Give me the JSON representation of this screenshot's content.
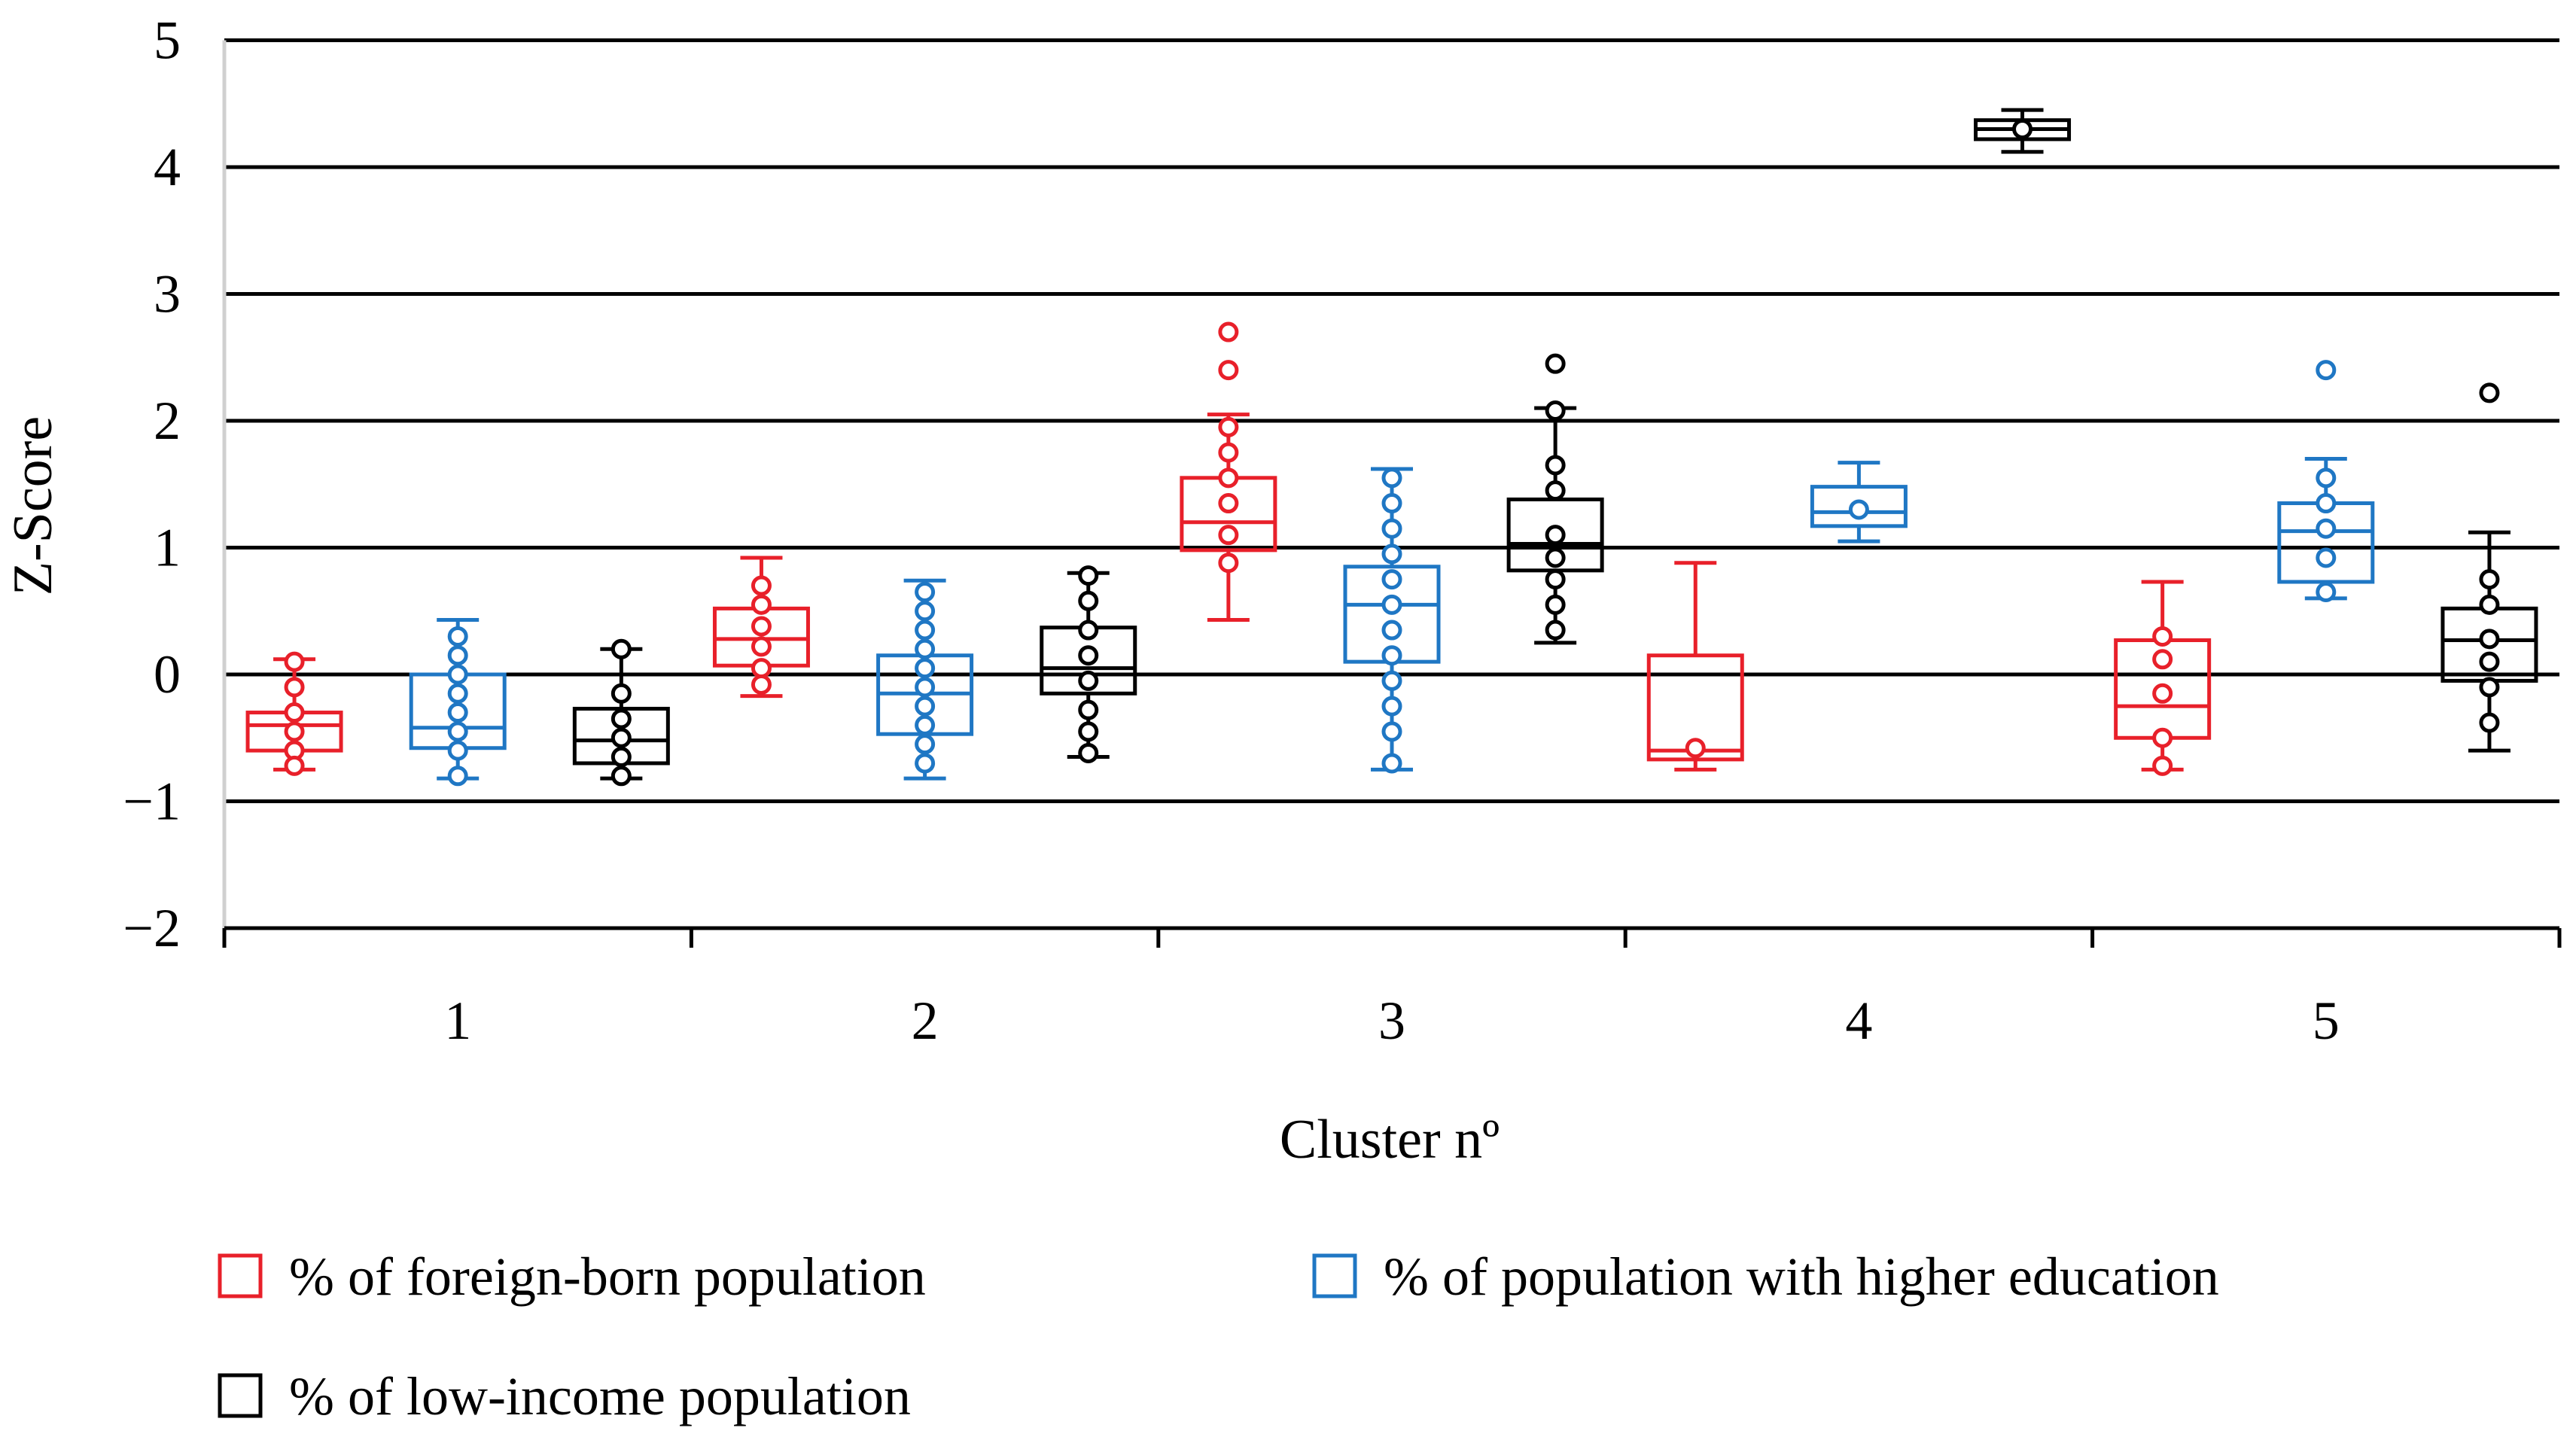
{
  "chart_data": {
    "type": "box",
    "xlabel": "Cluster nº",
    "ylabel": "Z-Score",
    "categories": [
      "1",
      "2",
      "3",
      "4",
      "5"
    ],
    "ylim": [
      -2,
      5
    ],
    "yticks": [
      5,
      4,
      3,
      2,
      1,
      0,
      -1,
      -2
    ],
    "ytick_labels": [
      "5",
      "4",
      "3",
      "2",
      "1",
      "0",
      "−1",
      "−2"
    ],
    "grid": true,
    "legend_position": "bottom",
    "series": [
      {
        "name": "% of foreign-born population",
        "color": "#e8202a",
        "boxes": [
          {
            "cluster": "1",
            "whisker_low": -0.75,
            "q1": -0.6,
            "median": -0.4,
            "q3": -0.3,
            "whisker_high": 0.12,
            "mean": -0.4,
            "points": [
              0.1,
              -0.1,
              -0.3,
              -0.45,
              -0.6,
              -0.72
            ]
          },
          {
            "cluster": "2",
            "whisker_low": -0.17,
            "q1": 0.07,
            "median": 0.28,
            "q3": 0.52,
            "whisker_high": 0.92,
            "mean": 0.3,
            "points": [
              0.7,
              0.55,
              0.38,
              0.22,
              0.05,
              -0.08
            ]
          },
          {
            "cluster": "3",
            "whisker_low": 0.43,
            "q1": 0.98,
            "median": 1.2,
            "q3": 1.55,
            "whisker_high": 2.05,
            "mean": 1.3,
            "points": [
              2.7,
              2.4,
              1.95,
              1.75,
              1.55,
              1.35,
              1.1,
              0.88
            ]
          },
          {
            "cluster": "4",
            "whisker_low": -0.75,
            "q1": -0.67,
            "median": -0.6,
            "q3": 0.15,
            "whisker_high": 0.88,
            "mean": -0.58,
            "points": [
              -0.58
            ]
          },
          {
            "cluster": "5",
            "whisker_low": -0.75,
            "q1": -0.5,
            "median": -0.25,
            "q3": 0.27,
            "whisker_high": 0.73,
            "mean": -0.1,
            "points": [
              0.3,
              0.12,
              -0.15,
              -0.5,
              -0.72
            ]
          }
        ]
      },
      {
        "name": "% of population with higher education",
        "color": "#1f77c4",
        "boxes": [
          {
            "cluster": "1",
            "whisker_low": -0.82,
            "q1": -0.58,
            "median": -0.42,
            "q3": 0.0,
            "whisker_high": 0.43,
            "mean": -0.3,
            "points": [
              0.3,
              0.15,
              0.0,
              -0.15,
              -0.3,
              -0.45,
              -0.6,
              -0.8
            ]
          },
          {
            "cluster": "2",
            "whisker_low": -0.82,
            "q1": -0.47,
            "median": -0.15,
            "q3": 0.15,
            "whisker_high": 0.74,
            "mean": -0.1,
            "points": [
              0.65,
              0.5,
              0.35,
              0.2,
              0.05,
              -0.1,
              -0.25,
              -0.4,
              -0.55,
              -0.7
            ]
          },
          {
            "cluster": "3",
            "whisker_low": -0.75,
            "q1": 0.1,
            "median": 0.55,
            "q3": 0.85,
            "whisker_high": 1.62,
            "mean": 0.5,
            "points": [
              1.55,
              1.35,
              1.15,
              0.95,
              0.75,
              0.55,
              0.35,
              0.15,
              -0.05,
              -0.25,
              -0.45,
              -0.7
            ]
          },
          {
            "cluster": "4",
            "whisker_low": 1.05,
            "q1": 1.17,
            "median": 1.28,
            "q3": 1.48,
            "whisker_high": 1.67,
            "mean": 1.3,
            "points": [
              1.3
            ]
          },
          {
            "cluster": "5",
            "whisker_low": 0.6,
            "q1": 0.73,
            "median": 1.13,
            "q3": 1.35,
            "whisker_high": 1.7,
            "mean": 1.05,
            "points": [
              2.4,
              1.55,
              1.35,
              1.15,
              0.92,
              0.65
            ]
          }
        ]
      },
      {
        "name": "% of low-income population",
        "color": "#000000",
        "boxes": [
          {
            "cluster": "1",
            "whisker_low": -0.82,
            "q1": -0.7,
            "median": -0.52,
            "q3": -0.27,
            "whisker_high": 0.2,
            "mean": -0.5,
            "points": [
              0.2,
              -0.15,
              -0.35,
              -0.5,
              -0.65,
              -0.8
            ]
          },
          {
            "cluster": "2",
            "whisker_low": -0.65,
            "q1": -0.15,
            "median": 0.05,
            "q3": 0.37,
            "whisker_high": 0.8,
            "mean": 0.05,
            "points": [
              0.78,
              0.58,
              0.35,
              0.15,
              -0.05,
              -0.28,
              -0.45,
              -0.62
            ]
          },
          {
            "cluster": "3",
            "whisker_low": 0.25,
            "q1": 0.82,
            "median": 1.03,
            "q3": 1.38,
            "whisker_high": 2.1,
            "mean": 1.05,
            "points": [
              2.45,
              2.08,
              1.65,
              1.45,
              1.1,
              0.92,
              0.75,
              0.55,
              0.35
            ]
          },
          {
            "cluster": "4",
            "whisker_low": 4.12,
            "q1": 4.22,
            "median": 4.3,
            "q3": 4.37,
            "whisker_high": 4.45,
            "mean": 4.3,
            "points": [
              4.3
            ]
          },
          {
            "cluster": "5",
            "whisker_low": -0.6,
            "q1": -0.05,
            "median": 0.27,
            "q3": 0.52,
            "whisker_high": 1.12,
            "mean": 0.2,
            "points": [
              2.22,
              0.75,
              0.55,
              0.28,
              0.1,
              -0.1,
              -0.38
            ]
          }
        ]
      }
    ]
  }
}
